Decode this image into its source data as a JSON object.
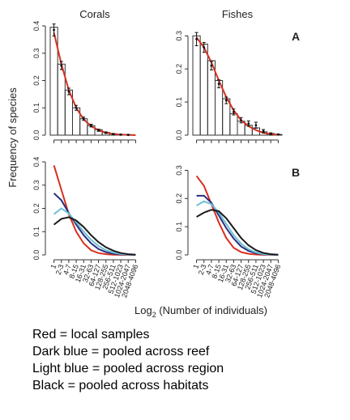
{
  "figure": {
    "ylabel": "Frequency of species",
    "xlabel_prefix": "Log",
    "xlabel_sub": "2",
    "xlabel_suffix": " (Number of individuals)",
    "categories": [
      "1",
      "2-3",
      "4-7",
      "8-15",
      "16-31",
      "32-63",
      "64-127",
      "128-255",
      "256-511",
      "512-1023",
      "1024-2047",
      "2048-4096"
    ],
    "colors": {
      "red": "#d7301f",
      "dark_blue": "#2b2d7e",
      "light_blue": "#6cc0d8",
      "black": "#1a1a1a",
      "bar_edge": "#333333",
      "errorbar": "#111111"
    }
  },
  "chart_data": [
    {
      "type": "bar",
      "title": "Corals",
      "panel_label": "",
      "ylim": [
        0,
        0.4
      ],
      "yticks": [
        "0.0",
        "0.1",
        "0.2",
        "0.3",
        "0.4"
      ],
      "yticks_values": [
        0,
        0.1,
        0.2,
        0.3,
        0.4
      ],
      "show_xtick_labels": false,
      "bars": [
        0.395,
        0.26,
        0.165,
        0.1,
        0.06,
        0.035,
        0.02,
        0.01,
        0.005,
        0.002,
        0.001,
        0.0
      ],
      "points": [
        0.385,
        0.255,
        0.16,
        0.1,
        0.06,
        0.035,
        0.018,
        0.009,
        0.004,
        0.002,
        0.001,
        0.0
      ],
      "errors": [
        0.022,
        0.015,
        0.012,
        0.009,
        0.006,
        0.005,
        0.004,
        0.003,
        0.002,
        0.001,
        0.001,
        0.0
      ],
      "fit": [
        0.375,
        0.26,
        0.165,
        0.1,
        0.058,
        0.033,
        0.018,
        0.009,
        0.004,
        0.002,
        0.001,
        0.0
      ]
    },
    {
      "type": "bar",
      "title": "Fishes",
      "panel_label": "A",
      "ylim": [
        0,
        0.33
      ],
      "yticks": [
        "0.0",
        "0.1",
        "0.2",
        "0.3"
      ],
      "yticks_values": [
        0,
        0.1,
        0.2,
        0.3
      ],
      "show_xtick_labels": false,
      "bars": [
        0.3,
        0.275,
        0.225,
        0.165,
        0.11,
        0.065,
        0.042,
        0.03,
        0.022,
        0.01,
        0.005,
        0.002
      ],
      "points": [
        0.29,
        0.265,
        0.21,
        0.155,
        0.105,
        0.07,
        0.045,
        0.035,
        0.03,
        0.012,
        0.004,
        0.002
      ],
      "errors": [
        0.02,
        0.015,
        0.013,
        0.012,
        0.01,
        0.009,
        0.008,
        0.008,
        0.009,
        0.005,
        0.003,
        0.001
      ],
      "fit": [
        0.295,
        0.265,
        0.22,
        0.165,
        0.115,
        0.075,
        0.045,
        0.027,
        0.015,
        0.007,
        0.003,
        0.001
      ]
    },
    {
      "type": "line",
      "title": "",
      "panel_label": "",
      "ylim": [
        0,
        0.4
      ],
      "yticks": [
        "0.0",
        "0.1",
        "0.2",
        "0.3",
        "0.4"
      ],
      "yticks_values": [
        0,
        0.1,
        0.2,
        0.3,
        0.4
      ],
      "show_xtick_labels": true,
      "series": [
        {
          "color_key": "red",
          "values": [
            0.385,
            0.28,
            0.175,
            0.1,
            0.05,
            0.02,
            0.008,
            0.003,
            0.001,
            0.0005,
            0.0002,
            0.0001
          ]
        },
        {
          "color_key": "dark_blue",
          "values": [
            0.265,
            0.235,
            0.18,
            0.13,
            0.085,
            0.05,
            0.025,
            0.012,
            0.005,
            0.002,
            0.0008,
            0.0003
          ]
        },
        {
          "color_key": "light_blue",
          "values": [
            0.175,
            0.2,
            0.178,
            0.14,
            0.1,
            0.065,
            0.038,
            0.02,
            0.01,
            0.004,
            0.0015,
            0.0005
          ]
        },
        {
          "color_key": "black",
          "values": [
            0.13,
            0.155,
            0.162,
            0.148,
            0.12,
            0.085,
            0.055,
            0.033,
            0.018,
            0.008,
            0.003,
            0.001
          ]
        }
      ]
    },
    {
      "type": "line",
      "title": "",
      "panel_label": "B",
      "ylim": [
        0,
        0.33
      ],
      "yticks": [
        "0.0",
        "0.1",
        "0.2",
        "0.3"
      ],
      "yticks_values": [
        0,
        0.1,
        0.2,
        0.3
      ],
      "show_xtick_labels": true,
      "series": [
        {
          "color_key": "red",
          "values": [
            0.28,
            0.245,
            0.18,
            0.115,
            0.06,
            0.025,
            0.01,
            0.004,
            0.0015,
            0.0005,
            0.0002,
            0.0001
          ]
        },
        {
          "color_key": "dark_blue",
          "values": [
            0.21,
            0.21,
            0.185,
            0.14,
            0.095,
            0.058,
            0.03,
            0.014,
            0.006,
            0.002,
            0.0008,
            0.0003
          ]
        },
        {
          "color_key": "light_blue",
          "values": [
            0.175,
            0.19,
            0.18,
            0.15,
            0.11,
            0.07,
            0.04,
            0.02,
            0.009,
            0.003,
            0.001,
            0.0004
          ]
        },
        {
          "color_key": "black",
          "values": [
            0.135,
            0.15,
            0.16,
            0.155,
            0.13,
            0.095,
            0.06,
            0.034,
            0.017,
            0.007,
            0.0025,
            0.0008
          ]
        }
      ]
    }
  ],
  "caption": {
    "lines": [
      "Red = local samples",
      "Dark blue = pooled across reef",
      "Light blue = pooled across region",
      "Black = pooled across habitats"
    ]
  }
}
